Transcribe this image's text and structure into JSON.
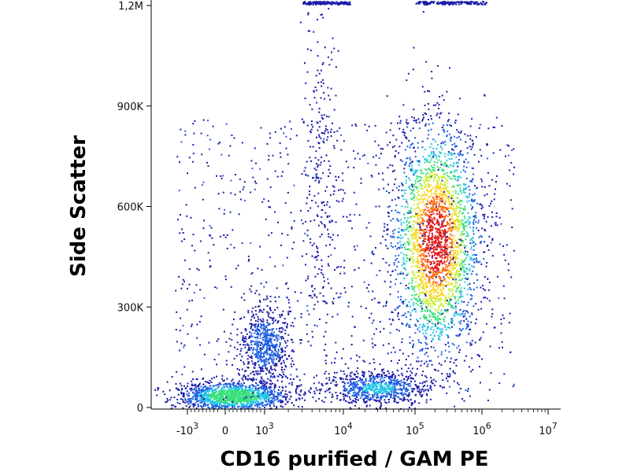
{
  "chart_data": {
    "type": "scatter",
    "subtype": "flow-cytometry-density-dot-plot",
    "title": "",
    "xlabel": "CD16 purified / GAM PE",
    "ylabel": "Side Scatter",
    "x_scale": "biexponential",
    "y_scale": "linear",
    "xlim": [
      -1500,
      10000000
    ],
    "ylim": [
      0,
      1200000
    ],
    "x_ticks": [
      {
        "value": -1000,
        "label_base": "-10",
        "label_exp": "3"
      },
      {
        "value": 0,
        "label_base": "0",
        "label_exp": ""
      },
      {
        "value": 1000,
        "label_base": "10",
        "label_exp": "3"
      },
      {
        "value": 10000,
        "label_base": "10",
        "label_exp": "4"
      },
      {
        "value": 100000,
        "label_base": "10",
        "label_exp": "5"
      },
      {
        "value": 1000000,
        "label_base": "10",
        "label_exp": "6"
      },
      {
        "value": 10000000,
        "label_base": "10",
        "label_exp": "7"
      }
    ],
    "y_ticks": [
      {
        "value": 0,
        "label": "0"
      },
      {
        "value": 300000,
        "label": "300K"
      },
      {
        "value": 600000,
        "label": "600K"
      },
      {
        "value": 900000,
        "label": "900K"
      },
      {
        "value": 1200000,
        "label": "1,2M"
      }
    ],
    "density_colormap": [
      "#1a1aa8",
      "#1f5fe0",
      "#22c6e6",
      "#36e07a",
      "#c8ee2a",
      "#ffd21a",
      "#ff6a10",
      "#e01a1a"
    ],
    "populations": [
      {
        "x_center": 200000,
        "y_center": 500000,
        "x_spread": 0.3,
        "y_spread": 170000,
        "relative_density": 1.0
      },
      {
        "x_center": 200,
        "y_center": 35000,
        "x_spread": 700,
        "y_spread": 22000,
        "relative_density": 0.55
      },
      {
        "x_center": 1000,
        "y_center": 190000,
        "x_spread": 0.18,
        "y_spread": 55000,
        "relative_density": 0.25
      },
      {
        "x_center": 30000,
        "y_center": 60000,
        "x_spread": 0.35,
        "y_spread": 25000,
        "relative_density": 0.3
      },
      {
        "x_center": 5000,
        "y_center": 700000,
        "x_spread": 0.12,
        "y_spread": 320000,
        "relative_density": 0.1
      }
    ],
    "grid": false,
    "legend": "none"
  }
}
